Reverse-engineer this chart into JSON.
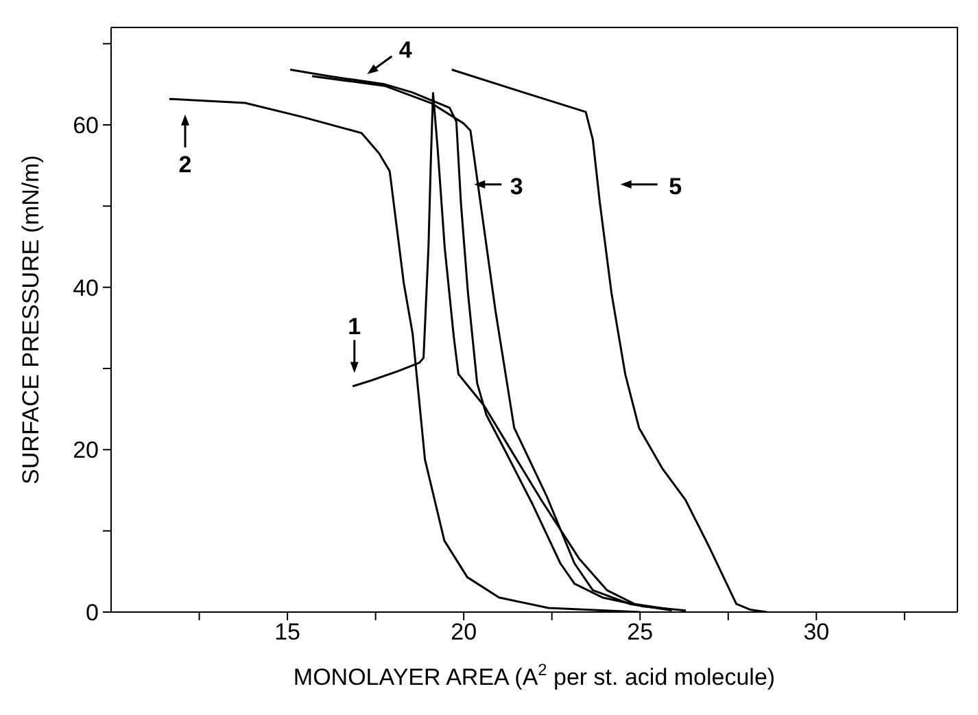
{
  "chart_data": {
    "type": "line",
    "xlabel": "MONOLAYER AREA (A$^{2}$ per st. acid molecule)",
    "ylabel": "SURFACE PRESSURE (mN/m)",
    "xlim": [
      10,
      34
    ],
    "ylim": [
      0,
      72
    ],
    "xticks": [
      {
        "value": 12.5,
        "label": null
      },
      15,
      {
        "value": 17.5,
        "label": null
      },
      20,
      {
        "value": 22.5,
        "label": null
      },
      25,
      {
        "value": 27.5,
        "label": null
      },
      30,
      {
        "value": 32.5,
        "label": null
      }
    ],
    "yticks": [
      0,
      {
        "value": 10,
        "label": null
      },
      20,
      {
        "value": 30,
        "label": null
      },
      40,
      {
        "value": 50,
        "label": null
      },
      60,
      {
        "value": 70,
        "label": null
      }
    ],
    "marker": "none",
    "line_style": "solid",
    "series": [
      {
        "color": "#000000",
        "x": [
          16.85,
          17.36,
          18.15,
          18.74,
          18.86,
          19.0,
          19.07,
          19.13,
          19.26,
          19.46,
          19.72,
          19.85,
          20.58,
          21.43,
          22.2,
          23.27,
          24.06,
          24.84,
          25.9
        ],
        "values": [
          27.8,
          28.5,
          29.7,
          30.7,
          31.3,
          44.9,
          56,
          63.9,
          57.1,
          44.9,
          33.8,
          29.3,
          25.4,
          19.3,
          13.8,
          6.6,
          2.7,
          1.0,
          0.3
        ]
      },
      {
        "color": "#000000",
        "x": [
          11.65,
          13.8,
          15.4,
          17.1,
          17.6,
          17.9,
          18.3,
          18.55,
          18.9,
          19.45,
          20.1,
          21.0,
          22.4,
          25.0
        ],
        "values": [
          63.2,
          62.7,
          61,
          59,
          56.5,
          54.3,
          40.5,
          34.3,
          18.8,
          8.8,
          4.3,
          1.8,
          0.5,
          0
        ]
      },
      {
        "color": "#000000",
        "x": [
          15.7,
          17.76,
          19.07,
          19.99,
          20.19,
          20.51,
          20.9,
          21.43,
          22.35,
          23.14,
          23.66,
          24.71,
          25.9
        ],
        "values": [
          66,
          64.8,
          62.7,
          60.2,
          59.3,
          49.3,
          37.1,
          22.7,
          14.3,
          6,
          2.7,
          1,
          0.2
        ]
      },
      {
        "color": "#000000",
        "x": [
          15.08,
          16.18,
          17.76,
          18.54,
          19.6,
          19.79,
          19.92,
          20.12,
          20.38,
          20.64,
          21.17,
          21.96,
          22.74,
          23.14,
          23.93,
          25.1,
          26.3
        ],
        "values": [
          66.8,
          66,
          65,
          64,
          62.1,
          60.4,
          50.4,
          39.3,
          28.2,
          24.3,
          19.9,
          13.2,
          6,
          3.5,
          1.8,
          0.7,
          0.2
        ]
      },
      {
        "color": "#000000",
        "x": [
          19.66,
          21.69,
          23.46,
          23.66,
          23.86,
          24.19,
          24.58,
          24.97,
          25.63,
          26.29,
          26.94,
          27.73,
          28.12,
          28.6
        ],
        "values": [
          66.8,
          64,
          61.6,
          58.2,
          50.4,
          39.3,
          29.3,
          22.7,
          17.7,
          13.8,
          8.2,
          1,
          0.3,
          0
        ]
      }
    ],
    "annotations": [
      "1",
      "2",
      "3",
      "4",
      "5"
    ]
  }
}
